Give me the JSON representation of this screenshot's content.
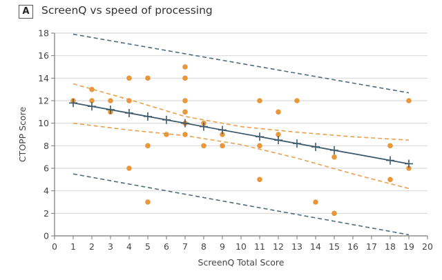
{
  "panel": {
    "label": "A",
    "title": "ScreenQ vs speed of processing"
  },
  "colors": {
    "points": "#E8973A",
    "fit_line": "#3D5A6C",
    "ci_band": "#E8A04A",
    "prediction_band": "#4E6B78",
    "grid": "#D9D9D9",
    "axis": "#777777"
  },
  "chart_data": {
    "type": "scatter",
    "title": "ScreenQ vs speed of processing",
    "xlabel": "ScreenQ Total Score",
    "ylabel": "CTOPP Score",
    "xlim": [
      0,
      20
    ],
    "ylim": [
      0,
      18
    ],
    "xticks": [
      0,
      1,
      2,
      3,
      4,
      5,
      6,
      7,
      8,
      9,
      10,
      11,
      12,
      13,
      14,
      15,
      16,
      17,
      18,
      19,
      20
    ],
    "yticks": [
      0,
      2,
      4,
      6,
      8,
      10,
      12,
      14,
      16,
      18
    ],
    "grid": "horizontal",
    "points": [
      [
        1,
        12
      ],
      [
        2,
        13
      ],
      [
        2,
        12
      ],
      [
        3,
        12
      ],
      [
        3,
        11
      ],
      [
        4,
        14
      ],
      [
        4,
        12
      ],
      [
        4,
        6
      ],
      [
        5,
        14
      ],
      [
        5,
        8
      ],
      [
        5,
        3
      ],
      [
        6,
        9
      ],
      [
        7,
        15
      ],
      [
        7,
        14
      ],
      [
        7,
        12
      ],
      [
        7,
        11
      ],
      [
        7,
        10
      ],
      [
        7,
        9
      ],
      [
        8,
        10
      ],
      [
        8,
        8
      ],
      [
        9,
        9
      ],
      [
        9,
        8
      ],
      [
        11,
        12
      ],
      [
        11,
        8
      ],
      [
        11,
        5
      ],
      [
        12,
        11
      ],
      [
        12,
        9
      ],
      [
        13,
        12
      ],
      [
        14,
        3
      ],
      [
        15,
        7
      ],
      [
        15,
        2
      ],
      [
        18,
        8
      ],
      [
        18,
        5
      ],
      [
        19,
        12
      ],
      [
        19,
        6
      ]
    ],
    "fit": {
      "name": "Regression line",
      "x": [
        1,
        2,
        3,
        4,
        5,
        6,
        7,
        8,
        9,
        11,
        12,
        13,
        14,
        15,
        18,
        19
      ],
      "start": [
        1,
        11.8
      ],
      "end": [
        19,
        6.4
      ]
    },
    "confidence_band": {
      "upper": [
        [
          1,
          13.5
        ],
        [
          4,
          12.1
        ],
        [
          7,
          10.6
        ],
        [
          10,
          9.7
        ],
        [
          13,
          9.2
        ],
        [
          16,
          8.8
        ],
        [
          19,
          8.5
        ]
      ],
      "lower": [
        [
          1,
          10.0
        ],
        [
          4,
          9.4
        ],
        [
          7,
          8.9
        ],
        [
          10,
          8.1
        ],
        [
          13,
          6.9
        ],
        [
          16,
          5.5
        ],
        [
          19,
          4.2
        ]
      ]
    },
    "prediction_band": {
      "upper": [
        [
          1,
          17.9
        ],
        [
          19,
          12.7
        ]
      ],
      "lower": [
        [
          1,
          5.5
        ],
        [
          19,
          0.1
        ]
      ]
    }
  }
}
